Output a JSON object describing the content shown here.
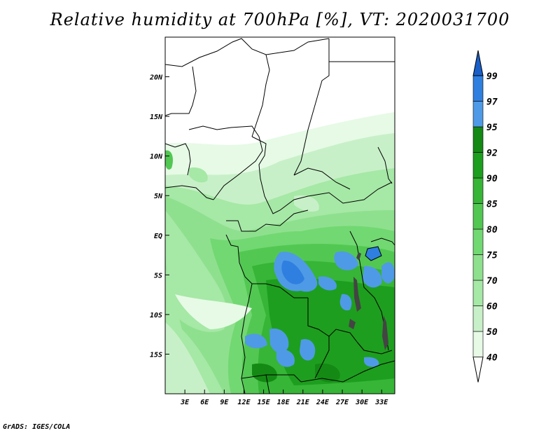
{
  "title": "Relative humidity at 700hPa [%], VT: 2020031700",
  "credit": "GrADS: IGES/COLA",
  "map": {
    "lon_range": [
      0,
      35
    ],
    "lat_range": [
      -20,
      25
    ],
    "lon_ticks": [
      {
        "value": 3,
        "label": "3E"
      },
      {
        "value": 6,
        "label": "6E"
      },
      {
        "value": 9,
        "label": "9E"
      },
      {
        "value": 12,
        "label": "12E"
      },
      {
        "value": 15,
        "label": "15E"
      },
      {
        "value": 18,
        "label": "18E"
      },
      {
        "value": 21,
        "label": "21E"
      },
      {
        "value": 24,
        "label": "24E"
      },
      {
        "value": 27,
        "label": "27E"
      },
      {
        "value": 30,
        "label": "30E"
      },
      {
        "value": 33,
        "label": "33E"
      }
    ],
    "lat_ticks": [
      {
        "value": 20,
        "label": "20N"
      },
      {
        "value": 15,
        "label": "15N"
      },
      {
        "value": 10,
        "label": "10N"
      },
      {
        "value": 5,
        "label": "5N"
      },
      {
        "value": 0,
        "label": "EQ"
      },
      {
        "value": -5,
        "label": "5S"
      },
      {
        "value": -10,
        "label": "10S"
      },
      {
        "value": -15,
        "label": "15S"
      }
    ]
  },
  "colorbar": {
    "levels": [
      {
        "label": "40",
        "color": "#ffffff"
      },
      {
        "label": "50",
        "color": "#e6fae6"
      },
      {
        "label": "60",
        "color": "#c8f0c8"
      },
      {
        "label": "70",
        "color": "#a6e8a6"
      },
      {
        "label": "75",
        "color": "#8ee08e"
      },
      {
        "label": "80",
        "color": "#72d872"
      },
      {
        "label": "85",
        "color": "#52c852"
      },
      {
        "label": "90",
        "color": "#36b536"
      },
      {
        "label": "92",
        "color": "#1e9e1e"
      },
      {
        "label": "95",
        "color": "#148a14"
      },
      {
        "label": "97",
        "color": "#4f9ae6"
      },
      {
        "label": "99",
        "color": "#2f7fe0"
      }
    ],
    "top_arrow_color": "#1a5fc8"
  }
}
